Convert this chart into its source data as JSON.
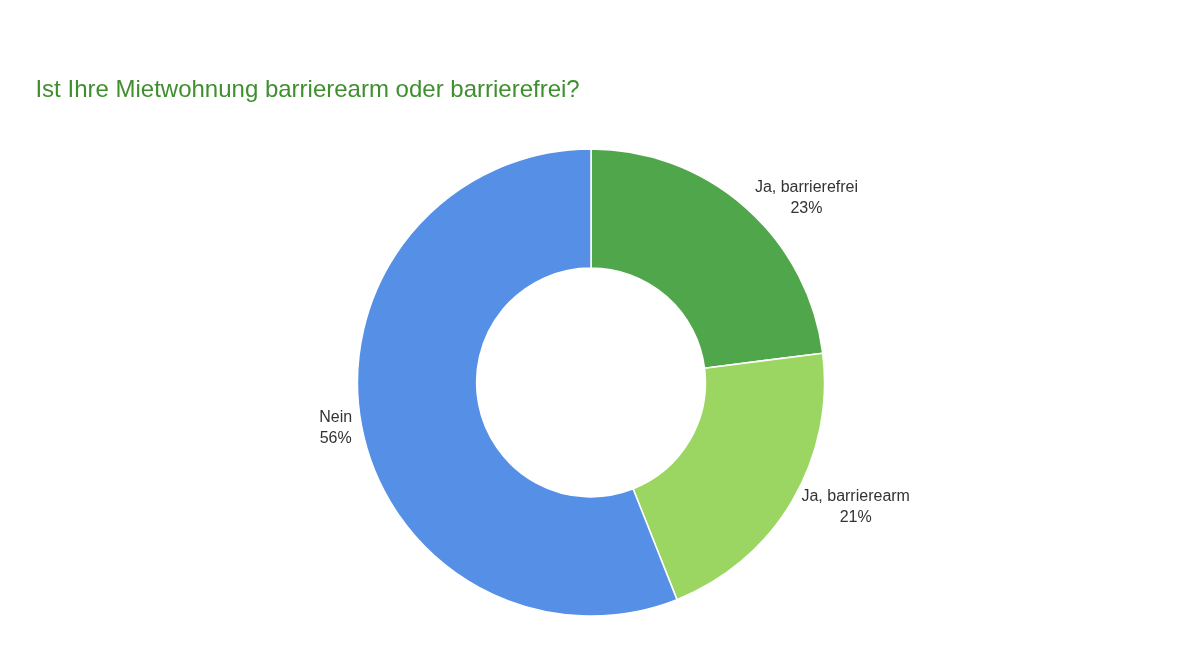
{
  "chart_data": {
    "type": "donut",
    "title": "Ist Ihre Mietwohnung barrierearm oder barrierefrei?",
    "categories": [
      "Ja, barrierefrei",
      "Ja, barrierearm",
      "Nein"
    ],
    "values": [
      23,
      21,
      56
    ],
    "value_labels": [
      "23%",
      "21%",
      "56%"
    ],
    "colors": [
      "#50a64a",
      "#9bd562",
      "#558fe6"
    ],
    "legend": false
  }
}
